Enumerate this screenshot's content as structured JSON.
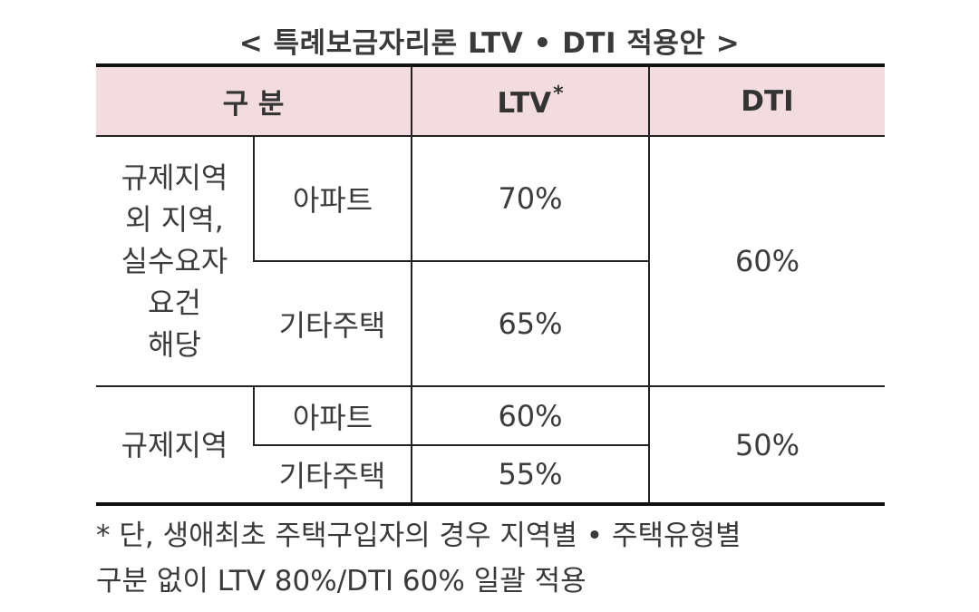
{
  "title": "< 특례보금자리론 LTV • DTI 적용안 >",
  "header": {
    "category": "구 분",
    "ltv": "LTV",
    "ltv_mark": "*",
    "dti": "DTI"
  },
  "groups": [
    {
      "label_lines": [
        "규제지역",
        "외 지역,",
        "실수요자",
        "요건",
        "해당"
      ],
      "rows": [
        {
          "type": "아파트",
          "ltv": "70%"
        },
        {
          "type": "기타주택",
          "ltv": "65%"
        }
      ],
      "dti": "60%"
    },
    {
      "label_lines": [
        "규제지역"
      ],
      "rows": [
        {
          "type": "아파트",
          "ltv": "60%"
        },
        {
          "type": "기타주택",
          "ltv": "55%"
        }
      ],
      "dti": "50%"
    }
  ],
  "footnote": {
    "line1": "* 단, 생애최초 주택구입자의 경우 지역별 • 주택유형별",
    "line2": "구분 없이 LTV 80%/DTI 60% 일괄 적용"
  },
  "colors": {
    "header_bg": "#f2dcdf",
    "border": "#111111",
    "text": "#333333"
  }
}
